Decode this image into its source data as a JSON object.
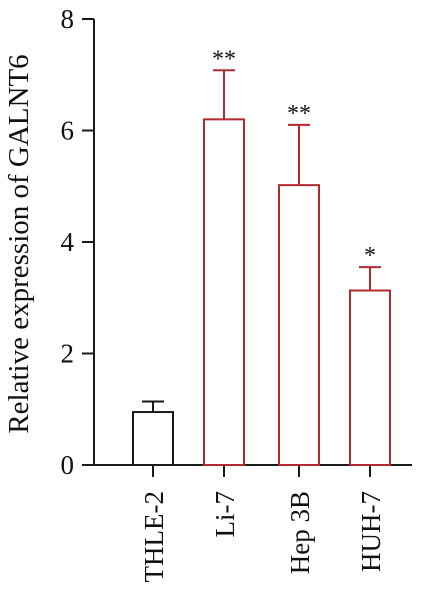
{
  "chart_data": {
    "type": "bar",
    "categories": [
      "THLE-2",
      "Li-7",
      "Hep 3B",
      "HUH-7"
    ],
    "values": [
      0.95,
      6.2,
      5.02,
      3.13
    ],
    "errors": [
      0.19,
      0.88,
      1.08,
      0.42
    ],
    "significance": [
      "",
      "**",
      "**",
      "*"
    ],
    "title": "",
    "xlabel": "",
    "ylabel": "Relative expression of GALNT6",
    "ylim": [
      0,
      8
    ],
    "yticks": [
      0,
      2,
      4,
      6,
      8
    ],
    "ytick_labels": [
      "0",
      "2",
      "4",
      "6",
      "8"
    ],
    "grid": false,
    "legend": "none",
    "colors": {
      "control": "#1a1a1a",
      "treated": "#b22a2e",
      "axis": "#1a1a1a",
      "fill": "#ffffff"
    }
  }
}
